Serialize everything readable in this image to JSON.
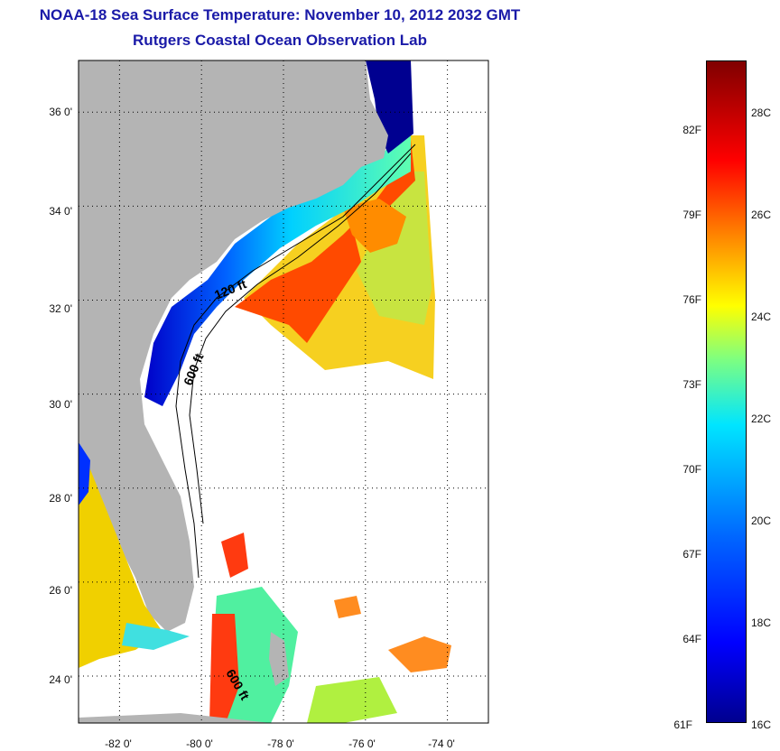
{
  "title": {
    "line1": "NOAA-18 Sea Surface Temperature:  November 10, 2012 2032 GMT",
    "line2": "Rutgers Coastal Ocean Observation Lab"
  },
  "map": {
    "lat_labels": [
      {
        "label": "36 0'",
        "lat": 36
      },
      {
        "label": "34 0'",
        "lat": 34
      },
      {
        "label": "32 0'",
        "lat": 32
      },
      {
        "label": "30 0'",
        "lat": 30
      },
      {
        "label": "28 0'",
        "lat": 28
      },
      {
        "label": "26 0'",
        "lat": 26
      },
      {
        "label": "24 0'",
        "lat": 24
      }
    ],
    "lon_labels": [
      {
        "label": "-82 0'",
        "lon": -82
      },
      {
        "label": "-80 0'",
        "lon": -80
      },
      {
        "label": "-78 0'",
        "lon": -78
      },
      {
        "label": "-76 0'",
        "lon": -76
      },
      {
        "label": "-74 0'",
        "lon": -74
      }
    ],
    "lat_range": [
      23,
      37.1
    ],
    "lon_range": [
      -83,
      -73
    ],
    "isobath_labels": [
      "120 ft",
      "600 ft",
      "600 ft"
    ]
  },
  "colorbar": {
    "fahrenheit": [
      "82F",
      "79F",
      "76F",
      "73F",
      "70F",
      "67F",
      "64F",
      "61F"
    ],
    "celsius": [
      "28C",
      "26C",
      "24C",
      "22C",
      "20C",
      "18C",
      "16C"
    ]
  },
  "colors": {
    "land": "#b4b4b4",
    "title": "#1a1aa8"
  }
}
